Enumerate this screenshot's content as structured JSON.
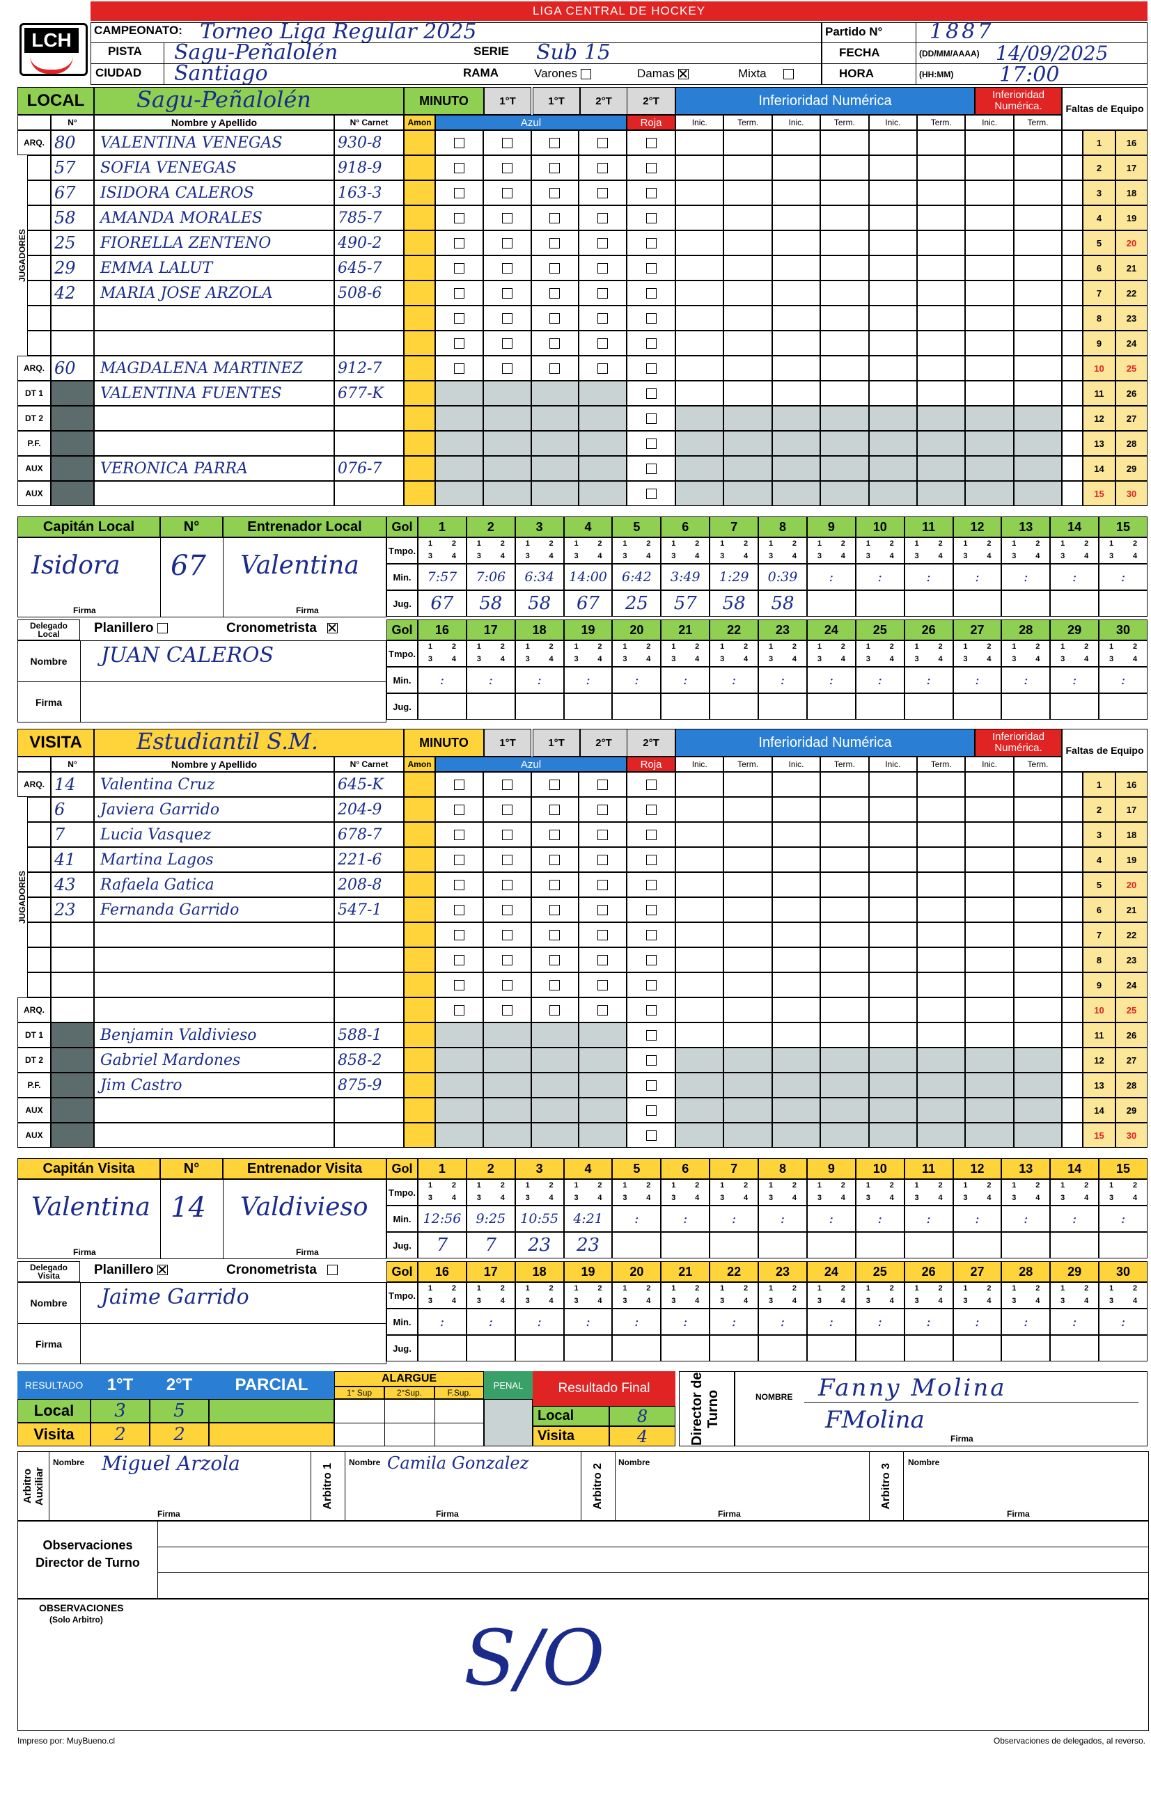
{
  "league": "LIGA CENTRAL DE HOCKEY",
  "logo": "LCH",
  "labels": {
    "campeonato": "CAMPEONATO:",
    "pista": "PISTA",
    "ciudad": "CIUDAD",
    "serie": "SERIE",
    "rama": "RAMA",
    "varones": "Varones",
    "damas": "Damas",
    "mixta": "Mixta",
    "partido": "Partido N°",
    "fecha": "FECHA",
    "fecha_fmt": "(DD/MM/AAAA)",
    "hora": "HORA",
    "hora_fmt": "(HH:MM)",
    "local": "LOCAL",
    "visita": "VISITA",
    "minuto": "MINUTO",
    "p1t": "1°T",
    "p2t": "2°T",
    "num": "N°",
    "nombre": "Nombre y Apellido",
    "carnet": "N° Carnet",
    "amon": "Amon",
    "azul": "Azul",
    "roja": "Roja",
    "inferioridad": "Inferioridad Numérica",
    "inferioridad_short": "Inferioridad Numérica.",
    "inic": "Inic.",
    "term": "Term.",
    "faltas": "Faltas de Equipo",
    "jugadores": "JUGADORES",
    "capitan_local": "Capitán Local",
    "entrenador_local": "Entrenador Local",
    "capitan_visita": "Capitán Visita",
    "entrenador_visita": "Entrenador Visita",
    "firma": "Firma",
    "gol": "Gol",
    "tmpo": "Tmpo.",
    "min": "Min.",
    "jug": "Jug.",
    "delegado_local": "Delegado Local",
    "delegado_visita": "Delegado Visita",
    "planillero": "Planillero",
    "cronometrista": "Cronometrista",
    "nombre_lbl": "Nombre",
    "resultado": "RESULTADO",
    "parcial": "PARCIAL",
    "alargue": "ALARGUE",
    "sup1": "1° Sup",
    "sup2": "2°Sup.",
    "fsup": "F.Sup.",
    "penal": "PENAL",
    "resultado_final": "Resultado Final",
    "director": "Director de Turno",
    "nombre_caps": "NOMBRE",
    "arbitro_aux": "Arbitro Auxiliar",
    "arbitro1": "Arbitro 1",
    "arbitro2": "Arbitro 2",
    "arbitro3": "Arbitro 3",
    "observaciones_dir": "Observaciones Director de Turno",
    "observaciones": "OBSERVACIONES",
    "solo_arbitro": "(Solo Arbitro)",
    "impreso": "Impreso por: MuyBueno.cl",
    "reverso": "Observaciones de delegados, al reverso.",
    "quarters": [
      "1",
      "2",
      "3",
      "4"
    ]
  },
  "match": {
    "campeonato": "Torneo Liga Regular 2025",
    "pista": "Sagu-Peñalolén",
    "ciudad": "Santiago",
    "serie": "Sub 15",
    "rama_damas": true,
    "partido": "1887",
    "fecha": "14/09/2025",
    "hora": "17:00"
  },
  "local": {
    "team": "Sagu-Peñalolén",
    "row_labels": [
      "ARQ.",
      "",
      "",
      "",
      "",
      "",
      "",
      "",
      "",
      "ARQ.",
      "DT 1",
      "DT 2",
      "P.F.",
      "AUX",
      "AUX"
    ],
    "players": [
      {
        "n": "80",
        "name": "VALENTINA VENEGAS",
        "carnet": "930-8"
      },
      {
        "n": "57",
        "name": "SOFIA VENEGAS",
        "carnet": "918-9"
      },
      {
        "n": "67",
        "name": "ISIDORA CALEROS",
        "carnet": "163-3"
      },
      {
        "n": "58",
        "name": "AMANDA MORALES",
        "carnet": "785-7"
      },
      {
        "n": "25",
        "name": "FIORELLA ZENTENO",
        "carnet": "490-2"
      },
      {
        "n": "29",
        "name": "EMMA LALUT",
        "carnet": "645-7"
      },
      {
        "n": "42",
        "name": "MARIA JOSE ARZOLA",
        "carnet": "508-6"
      },
      {
        "n": "",
        "name": "",
        "carnet": ""
      },
      {
        "n": "",
        "name": "",
        "carnet": ""
      },
      {
        "n": "60",
        "name": "MAGDALENA MARTINEZ",
        "carnet": "912-7"
      },
      {
        "n": "",
        "name": "VALENTINA FUENTES",
        "carnet": "677-K"
      },
      {
        "n": "",
        "name": "",
        "carnet": ""
      },
      {
        "n": "",
        "name": "",
        "carnet": ""
      },
      {
        "n": "",
        "name": "VERONICA PARRA",
        "carnet": "076-7"
      },
      {
        "n": "",
        "name": "",
        "carnet": ""
      }
    ],
    "captain_num": "67",
    "captain_sig": "Isidora",
    "coach_sig": "Valentina",
    "delegado": "JUAN CALEROS",
    "cronometrista": true,
    "goals": [
      {
        "g": "1",
        "min": "7:57",
        "jug": "67"
      },
      {
        "g": "2",
        "min": "7:06",
        "jug": "58"
      },
      {
        "g": "3",
        "min": "6:34",
        "jug": "58"
      },
      {
        "g": "4",
        "min": "14:00",
        "jug": "67"
      },
      {
        "g": "5",
        "min": "6:42",
        "jug": "25"
      },
      {
        "g": "6",
        "min": "3:49",
        "jug": "57"
      },
      {
        "g": "7",
        "min": "1:29",
        "jug": "58"
      },
      {
        "g": "8",
        "min": "0:39",
        "jug": "58"
      }
    ]
  },
  "visita": {
    "team": "Estudiantil S.M.",
    "row_labels": [
      "ARQ.",
      "",
      "",
      "",
      "",
      "",
      "",
      "",
      "",
      "ARQ.",
      "DT 1",
      "DT 2",
      "P.F.",
      "AUX",
      "AUX"
    ],
    "players": [
      {
        "n": "14",
        "name": "Valentina Cruz",
        "carnet": "645-K"
      },
      {
        "n": "6",
        "name": "Javiera Garrido",
        "carnet": "204-9"
      },
      {
        "n": "7",
        "name": "Lucia Vasquez",
        "carnet": "678-7"
      },
      {
        "n": "41",
        "name": "Martina Lagos",
        "carnet": "221-6"
      },
      {
        "n": "43",
        "name": "Rafaela Gatica",
        "carnet": "208-8"
      },
      {
        "n": "23",
        "name": "Fernanda Garrido",
        "carnet": "547-1"
      },
      {
        "n": "",
        "name": "",
        "carnet": ""
      },
      {
        "n": "",
        "name": "",
        "carnet": ""
      },
      {
        "n": "",
        "name": "",
        "carnet": ""
      },
      {
        "n": "",
        "name": "",
        "carnet": ""
      },
      {
        "n": "",
        "name": "Benjamin Valdivieso",
        "carnet": "588-1"
      },
      {
        "n": "",
        "name": "Gabriel Mardones",
        "carnet": "858-2"
      },
      {
        "n": "",
        "name": "Jim Castro",
        "carnet": "875-9"
      },
      {
        "n": "",
        "name": "",
        "carnet": ""
      },
      {
        "n": "",
        "name": "",
        "carnet": ""
      }
    ],
    "captain_num": "14",
    "captain_sig": "Valentina",
    "coach_sig": "Valdivieso",
    "delegado": "Jaime Garrido",
    "planillero": true,
    "goals": [
      {
        "g": "1",
        "min": "12:56",
        "jug": "7"
      },
      {
        "g": "2",
        "min": "9:25",
        "jug": "7"
      },
      {
        "g": "3",
        "min": "10:55",
        "jug": "23"
      },
      {
        "g": "4",
        "min": "4:21",
        "jug": "23"
      }
    ]
  },
  "faltas_numbers": [
    "1",
    "2",
    "3",
    "4",
    "5",
    "6",
    "7",
    "8",
    "9",
    "10",
    "11",
    "12",
    "13",
    "14",
    "15"
  ],
  "faltas_numbers2": [
    "16",
    "17",
    "18",
    "19",
    "20",
    "21",
    "22",
    "23",
    "24",
    "25",
    "26",
    "27",
    "28",
    "29",
    "30"
  ],
  "results": {
    "local_label": "Local",
    "visita_label": "Visita",
    "local_1t": "3",
    "local_2t": "5",
    "visita_1t": "2",
    "visita_2t": "2",
    "final_local": "8",
    "final_visita": "4"
  },
  "director": {
    "nombre": "Fanny Molina",
    "firma": "FMolina"
  },
  "arbitros": {
    "auxiliar": "Miguel Arzola",
    "arbitro1": "Camila Gonzalez"
  },
  "observaciones_mark": "S/O"
}
